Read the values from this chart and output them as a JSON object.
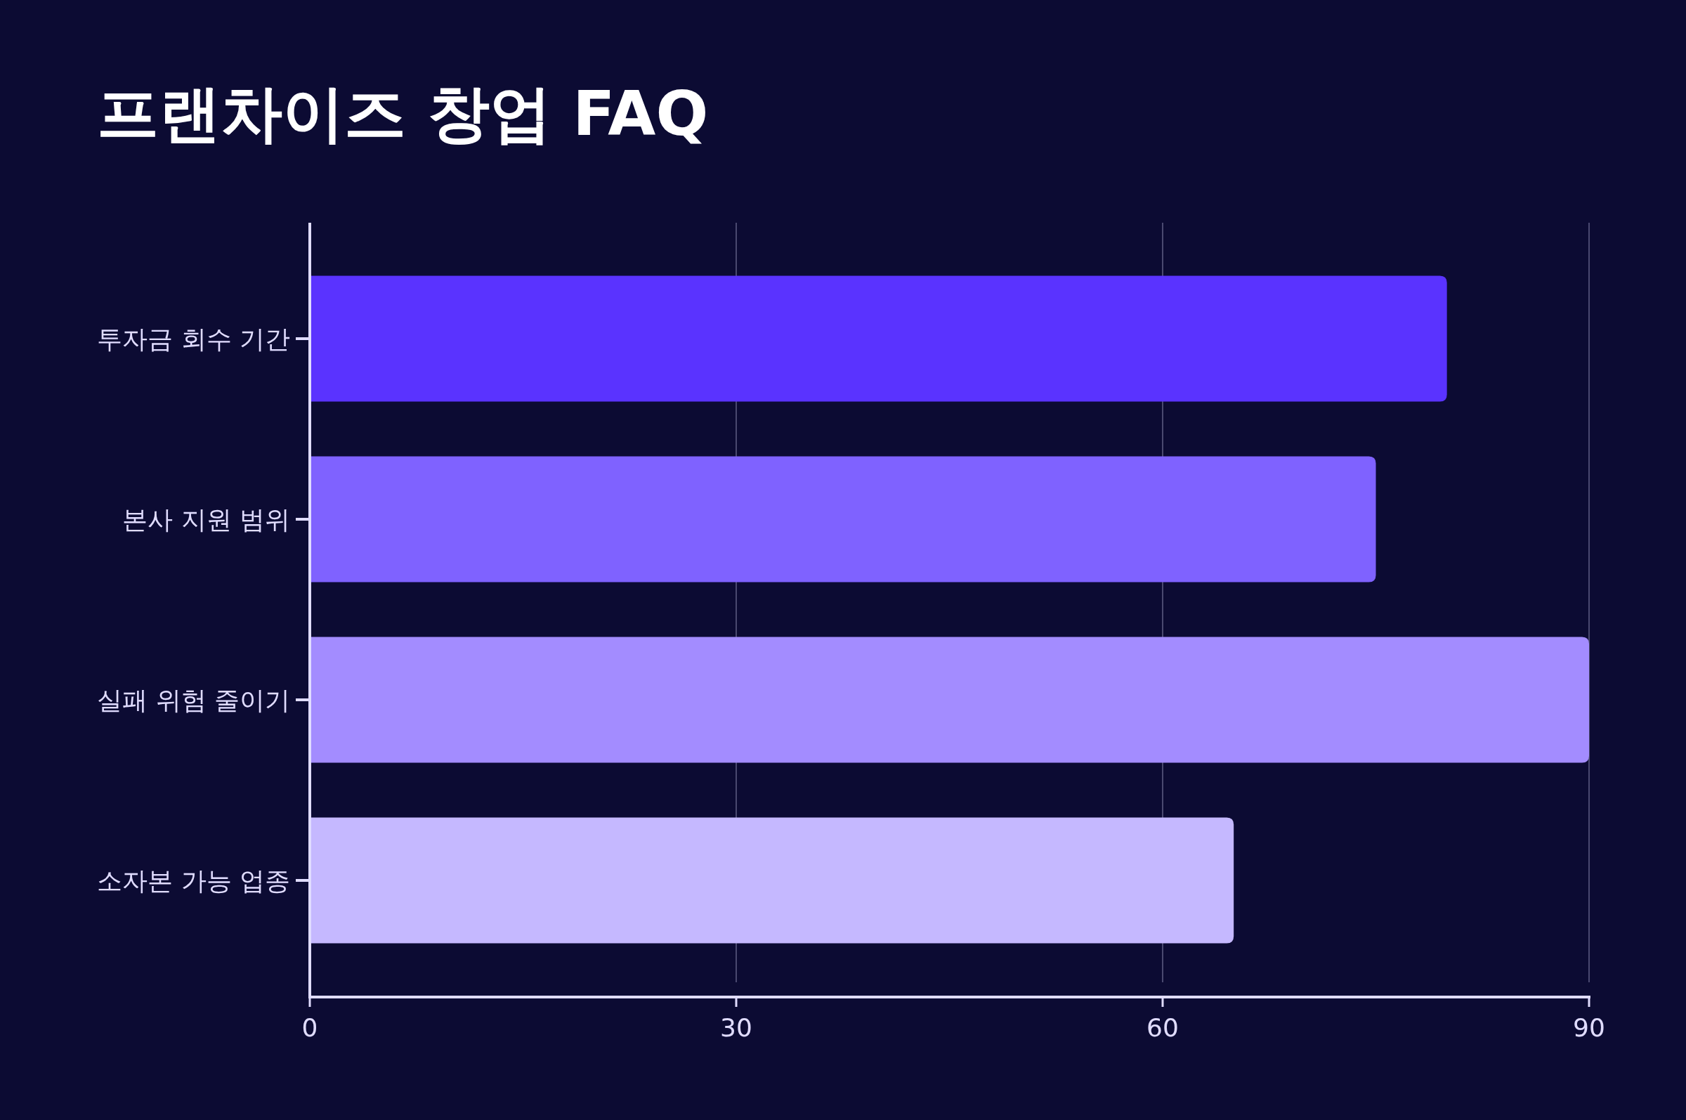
{
  "chart_data": {
    "type": "bar",
    "orientation": "horizontal",
    "title": "프랜차이즈 창업 FAQ",
    "categories": [
      "투자금 회수 기간",
      "본사 지원 범위",
      "실패 위험 줄이기",
      "소자본 가능 업종"
    ],
    "values": [
      80,
      75,
      90,
      65
    ],
    "colors": [
      "#5a33ff",
      "#7f62ff",
      "#a38cff",
      "#c5b8ff"
    ],
    "xlim": [
      0,
      90
    ],
    "xticks": [
      0,
      30,
      60,
      90
    ],
    "grid": "x"
  }
}
